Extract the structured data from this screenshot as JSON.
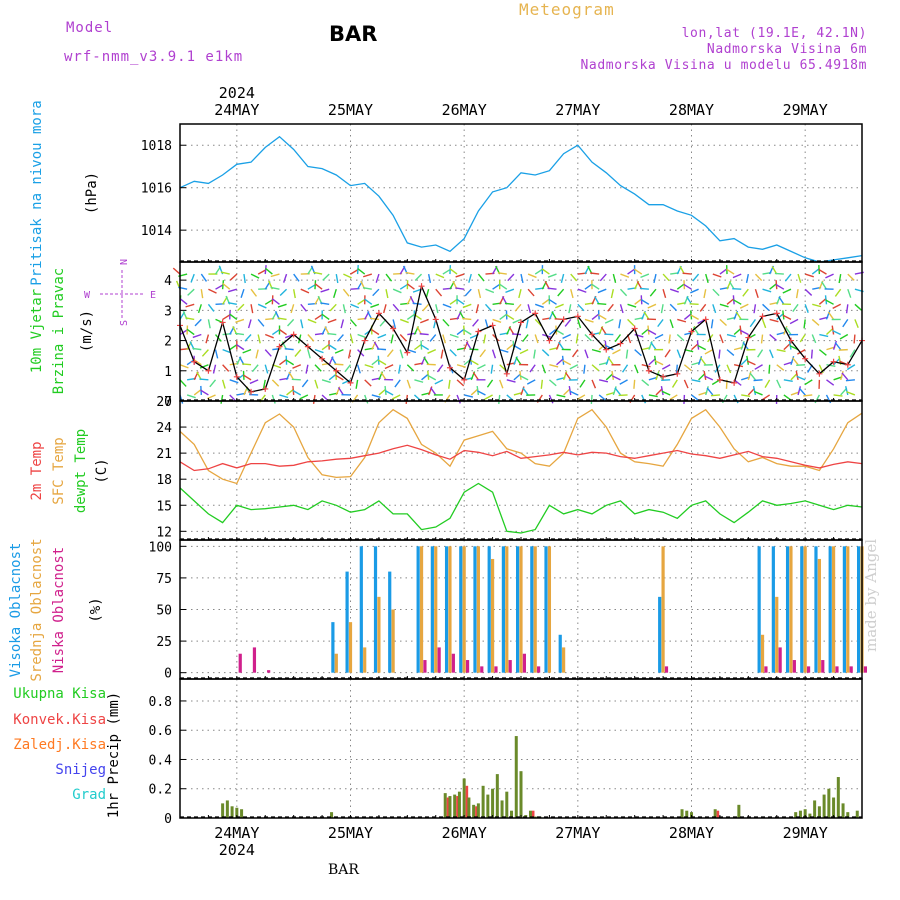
{
  "header": {
    "model_label": "Model",
    "model_name": "wrf-nmm_v3.9.1 e1km",
    "station": "BAR",
    "product": "Meteogram",
    "coords": "lon,lat (19.1E, 42.1N)",
    "elevation": "Nadmorska Visina 6m",
    "model_elevation": "Nadmorska Visina u modelu 65.4918m"
  },
  "footer": {
    "station": "BAR"
  },
  "watermark": "made by Angel",
  "colors": {
    "pressure": "#1aa0e6",
    "t2m": "#ee4444",
    "sfc": "#e6a640",
    "dew": "#22cc22",
    "high": "#1a9be6",
    "mid": "#e6a640",
    "low": "#d0208c",
    "total": "#22cc22",
    "conv": "#ee4444",
    "frz": "#ff7a22",
    "snow": "#4444ee",
    "hail": "#22cccc",
    "accent": "#b040d0"
  },
  "chart_data": [
    {
      "type": "line",
      "id": "pressure",
      "x_unit": "hours from 24MAY 00:00",
      "xlim": [
        -12,
        132
      ],
      "x_ticks": [
        0,
        24,
        48,
        72,
        96,
        120
      ],
      "x_tick_labels": [
        "24MAY",
        "25MAY",
        "26MAY",
        "27MAY",
        "28MAY",
        "29MAY"
      ],
      "year_label": "2024",
      "ylabel": "Pritisak na nivou mora",
      "unit_label": "(hPa)",
      "ylim": [
        1012.5,
        1019
      ],
      "yticks": [
        1014,
        1016,
        1018
      ],
      "grid": true,
      "series": [
        {
          "name": "Pritisak na nivou mora",
          "x": [
            -12,
            -9,
            -6,
            -3,
            0,
            3,
            6,
            9,
            12,
            15,
            18,
            21,
            24,
            27,
            30,
            33,
            36,
            39,
            42,
            45,
            48,
            51,
            54,
            57,
            60,
            63,
            66,
            69,
            72,
            75,
            78,
            81,
            84,
            87,
            90,
            93,
            96,
            99,
            102,
            105,
            108,
            111,
            114,
            117,
            120,
            123,
            126,
            129,
            132
          ],
          "values": [
            1016.0,
            1016.3,
            1016.2,
            1016.6,
            1017.1,
            1017.2,
            1017.9,
            1018.4,
            1017.8,
            1017.0,
            1016.9,
            1016.6,
            1016.1,
            1016.2,
            1015.6,
            1014.7,
            1013.4,
            1013.2,
            1013.3,
            1013.0,
            1013.6,
            1014.9,
            1015.8,
            1016.0,
            1016.7,
            1016.6,
            1016.8,
            1017.6,
            1018.0,
            1017.2,
            1016.7,
            1016.1,
            1015.7,
            1015.2,
            1015.2,
            1014.9,
            1014.7,
            1014.2,
            1013.5,
            1013.6,
            1013.2,
            1013.1,
            1013.3,
            1013.0,
            1012.7,
            1012.5,
            1012.6,
            1012.7,
            1012.8
          ]
        }
      ]
    },
    {
      "type": "line",
      "id": "wind",
      "xlim": [
        -12,
        132
      ],
      "ylabel_1": "10m Vjetar",
      "ylabel_2": "Brzina i Pravac",
      "unit_label": "(m/s)",
      "ylim": [
        0,
        4.6
      ],
      "yticks": [
        0,
        1,
        2,
        3,
        4
      ],
      "compass": {
        "n": "N",
        "s": "S",
        "e": "E",
        "w": "W"
      },
      "series": [
        {
          "name": "10m Vjetar Brzina",
          "x": [
            -12,
            -9,
            -6,
            -3,
            0,
            3,
            6,
            9,
            12,
            15,
            18,
            21,
            24,
            27,
            30,
            33,
            36,
            39,
            42,
            45,
            48,
            51,
            54,
            57,
            60,
            63,
            66,
            69,
            72,
            75,
            78,
            81,
            84,
            87,
            90,
            93,
            96,
            99,
            102,
            105,
            108,
            111,
            114,
            117,
            120,
            123,
            126,
            129,
            132
          ],
          "values": [
            2.5,
            1.3,
            1.0,
            2.6,
            0.8,
            0.3,
            0.4,
            1.8,
            2.2,
            1.8,
            1.4,
            1.0,
            0.6,
            2.0,
            2.9,
            2.4,
            1.6,
            3.8,
            2.7,
            1.1,
            0.7,
            2.3,
            2.5,
            0.9,
            2.6,
            2.9,
            2.0,
            2.7,
            2.8,
            2.2,
            1.7,
            1.9,
            2.4,
            1.0,
            0.8,
            0.9,
            2.3,
            2.7,
            0.7,
            0.6,
            2.1,
            2.8,
            2.9,
            2.0,
            1.4,
            0.9,
            1.3,
            1.2,
            2.0
          ]
        }
      ]
    },
    {
      "type": "line",
      "id": "temperature",
      "xlim": [
        -12,
        132
      ],
      "ylabel_1": "2m Temp",
      "ylabel_2": "SFC Temp",
      "ylabel_3": "dewpt Temp",
      "unit_label": "(C)",
      "ylim": [
        11,
        27
      ],
      "yticks": [
        12,
        15,
        18,
        21,
        24,
        27
      ],
      "series": [
        {
          "name": "2m Temp",
          "x": [
            -12,
            -9,
            -6,
            -3,
            0,
            3,
            6,
            9,
            12,
            15,
            18,
            21,
            24,
            27,
            30,
            33,
            36,
            39,
            42,
            45,
            48,
            51,
            54,
            57,
            60,
            63,
            66,
            69,
            72,
            75,
            78,
            81,
            84,
            87,
            90,
            93,
            96,
            99,
            102,
            105,
            108,
            111,
            114,
            117,
            120,
            123,
            126,
            129,
            132
          ],
          "values": [
            20.0,
            19.0,
            19.2,
            19.8,
            19.3,
            19.8,
            19.8,
            19.5,
            19.6,
            20.0,
            20.1,
            20.3,
            20.4,
            20.7,
            21.0,
            21.5,
            21.9,
            21.4,
            20.8,
            20.3,
            21.3,
            21.1,
            20.7,
            21.2,
            20.4,
            20.6,
            20.8,
            21.1,
            20.8,
            21.1,
            21.0,
            20.6,
            20.4,
            20.7,
            21.0,
            21.3,
            20.9,
            20.7,
            20.4,
            20.8,
            21.2,
            20.6,
            20.4,
            20.0,
            19.6,
            19.3,
            19.7,
            20.0,
            19.8
          ]
        },
        {
          "name": "SFC Temp",
          "x": [
            -12,
            -9,
            -6,
            -3,
            0,
            3,
            6,
            9,
            12,
            15,
            18,
            21,
            24,
            27,
            30,
            33,
            36,
            39,
            42,
            45,
            48,
            51,
            54,
            57,
            60,
            63,
            66,
            69,
            72,
            75,
            78,
            81,
            84,
            87,
            90,
            93,
            96,
            99,
            102,
            105,
            108,
            111,
            114,
            117,
            120,
            123,
            126,
            129,
            132
          ],
          "values": [
            23.5,
            22.0,
            19.0,
            18.0,
            17.5,
            21.0,
            24.5,
            25.5,
            24.0,
            20.5,
            18.5,
            18.2,
            18.3,
            20.5,
            24.5,
            26.0,
            25.0,
            22.0,
            21.0,
            19.5,
            22.5,
            23.0,
            23.5,
            21.5,
            21.0,
            19.8,
            19.5,
            21.0,
            25.0,
            26.0,
            24.0,
            21.0,
            20.0,
            19.8,
            19.5,
            22.0,
            25.0,
            26.0,
            24.0,
            21.5,
            20.0,
            20.5,
            19.8,
            19.5,
            19.5,
            19.0,
            21.5,
            24.5,
            25.6
          ]
        },
        {
          "name": "dewpt Temp",
          "x": [
            -12,
            -9,
            -6,
            -3,
            0,
            3,
            6,
            9,
            12,
            15,
            18,
            21,
            24,
            27,
            30,
            33,
            36,
            39,
            42,
            45,
            48,
            51,
            54,
            57,
            60,
            63,
            66,
            69,
            72,
            75,
            78,
            81,
            84,
            87,
            90,
            93,
            96,
            99,
            102,
            105,
            108,
            111,
            114,
            117,
            120,
            123,
            126,
            129,
            132
          ],
          "values": [
            17.0,
            15.5,
            14.0,
            13.0,
            15.0,
            14.5,
            14.6,
            14.8,
            15.0,
            14.5,
            15.5,
            15.0,
            14.2,
            14.5,
            15.5,
            14.0,
            14.0,
            12.2,
            12.5,
            13.5,
            16.5,
            17.5,
            16.5,
            12.0,
            11.8,
            12.2,
            15.0,
            14.0,
            14.5,
            14.0,
            15.0,
            15.5,
            14.0,
            14.5,
            14.2,
            13.5,
            15.0,
            15.5,
            14.0,
            13.0,
            14.2,
            15.5,
            15.0,
            15.2,
            15.5,
            15.0,
            14.5,
            15.0,
            14.8
          ]
        }
      ]
    },
    {
      "type": "bar",
      "id": "cloud",
      "xlim": [
        -12,
        132
      ],
      "ylabel_1": "Visoka Oblacnost",
      "ylabel_2": "Srednja Oblacnost",
      "ylabel_3": "Niska Oblacnost",
      "unit_label": "(%)",
      "ylim": [
        -5,
        105
      ],
      "yticks": [
        0,
        25,
        50,
        75,
        100
      ],
      "x": [
        -12,
        -9,
        -6,
        -3,
        0,
        3,
        6,
        9,
        12,
        15,
        18,
        21,
        24,
        27,
        30,
        33,
        36,
        39,
        42,
        45,
        48,
        51,
        54,
        57,
        60,
        63,
        66,
        69,
        72,
        75,
        78,
        81,
        84,
        87,
        90,
        93,
        96,
        99,
        102,
        105,
        108,
        111,
        114,
        117,
        120,
        123,
        126,
        129,
        132
      ],
      "series": [
        {
          "name": "Visoka Oblacnost",
          "values": [
            0,
            0,
            0,
            0,
            0,
            0,
            0,
            0,
            0,
            0,
            0,
            40,
            80,
            100,
            100,
            80,
            0,
            100,
            100,
            100,
            100,
            100,
            100,
            100,
            100,
            100,
            100,
            30,
            0,
            0,
            0,
            0,
            0,
            0,
            60,
            0,
            0,
            0,
            0,
            0,
            0,
            100,
            100,
            100,
            100,
            100,
            100,
            100,
            100
          ]
        },
        {
          "name": "Srednja Oblacnost",
          "values": [
            0,
            0,
            0,
            0,
            0,
            0,
            0,
            0,
            0,
            0,
            0,
            15,
            40,
            20,
            60,
            50,
            0,
            100,
            100,
            100,
            100,
            100,
            90,
            100,
            100,
            100,
            100,
            20,
            0,
            0,
            0,
            0,
            0,
            0,
            100,
            0,
            0,
            0,
            0,
            0,
            0,
            30,
            60,
            100,
            100,
            90,
            100,
            100,
            100
          ]
        },
        {
          "name": "Niska Oblacnost",
          "values": [
            0,
            0,
            0,
            0,
            15,
            20,
            2,
            0,
            0,
            0,
            0,
            0,
            0,
            0,
            0,
            0,
            0,
            10,
            20,
            15,
            10,
            5,
            5,
            10,
            15,
            5,
            0,
            0,
            0,
            0,
            0,
            0,
            0,
            0,
            5,
            0,
            0,
            0,
            0,
            0,
            0,
            5,
            20,
            10,
            5,
            10,
            5,
            5,
            5
          ]
        }
      ]
    },
    {
      "type": "bar",
      "id": "precip",
      "xlim": [
        -12,
        132
      ],
      "ylabel": "1hr Precip",
      "unit_label": "(mm)",
      "legend": [
        "Ukupna Kisa",
        "Konvek.Kisa",
        "Zaledj.Kisa",
        "Snijeg",
        "Grad"
      ],
      "ylim": [
        0,
        0.95
      ],
      "yticks": [
        0,
        0.2,
        0.4,
        0.6,
        0.8
      ],
      "x": [
        -3,
        -2,
        -1,
        0,
        1,
        20,
        44,
        45,
        46,
        47,
        48,
        49,
        50,
        51,
        52,
        53,
        54,
        55,
        56,
        57,
        58,
        59,
        60,
        61,
        62,
        63,
        64,
        94,
        95,
        96,
        101,
        106,
        118,
        119,
        120,
        121,
        122,
        123,
        124,
        125,
        126,
        127,
        128,
        129,
        131
      ],
      "series": [
        {
          "name": "Ukupna Kisa",
          "values": [
            0.1,
            0.12,
            0.08,
            0.07,
            0.06,
            0.04,
            0.17,
            0.15,
            0.16,
            0.18,
            0.27,
            0.14,
            0.09,
            0.1,
            0.22,
            0.16,
            0.2,
            0.3,
            0.12,
            0.18,
            0.05,
            0.56,
            0.32,
            0.02,
            0.05,
            0.01,
            0.01,
            0.06,
            0.05,
            0.04,
            0.06,
            0.09,
            0.04,
            0.05,
            0.06,
            0.03,
            0.12,
            0.08,
            0.16,
            0.2,
            0.14,
            0.28,
            0.1,
            0.04,
            0.05
          ]
        },
        {
          "name": "Konvek.Kisa",
          "values": [
            0,
            0,
            0,
            0,
            0,
            0,
            0.14,
            0,
            0.15,
            0,
            0.22,
            0,
            0.08,
            0,
            0,
            0,
            0,
            0,
            0,
            0,
            0,
            0,
            0,
            0,
            0.05,
            0,
            0,
            0,
            0,
            0,
            0.05,
            0,
            0,
            0,
            0,
            0,
            0,
            0,
            0,
            0,
            0,
            0,
            0,
            0,
            0
          ]
        }
      ]
    }
  ]
}
